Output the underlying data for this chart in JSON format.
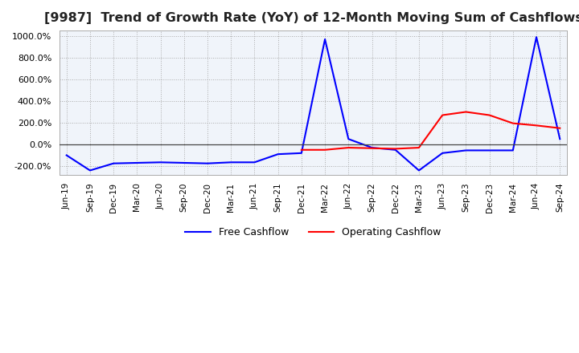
{
  "title": "[9987]  Trend of Growth Rate (YoY) of 12-Month Moving Sum of Cashflows",
  "title_fontsize": 11.5,
  "background_color": "#ffffff",
  "plot_bg_color": "#f0f4fa",
  "grid_color": "#aaaaaa",
  "x_labels": [
    "Jun-19",
    "Sep-19",
    "Dec-19",
    "Mar-20",
    "Jun-20",
    "Sep-20",
    "Dec-20",
    "Mar-21",
    "Jun-21",
    "Sep-21",
    "Dec-21",
    "Mar-22",
    "Jun-22",
    "Sep-22",
    "Dec-22",
    "Mar-23",
    "Jun-23",
    "Sep-23",
    "Dec-23",
    "Mar-24",
    "Jun-24",
    "Sep-24"
  ],
  "operating_cashflow": [
    null,
    null,
    null,
    null,
    null,
    null,
    null,
    null,
    null,
    null,
    -50,
    -50,
    -30,
    -35,
    -40,
    -30,
    270,
    300,
    270,
    195,
    175,
    150
  ],
  "free_cashflow": [
    -100,
    -240,
    -175,
    -170,
    -165,
    -170,
    -175,
    -165,
    -165,
    -90,
    -80,
    970,
    50,
    -30,
    -50,
    -240,
    -80,
    -55,
    -55,
    -55,
    990,
    50
  ],
  "ylim": [
    -280,
    1050
  ],
  "yticks": [
    -200,
    0,
    200,
    400,
    600,
    800,
    1000
  ],
  "operating_color": "#ff0000",
  "free_color": "#0000ff",
  "legend_labels": [
    "Operating Cashflow",
    "Free Cashflow"
  ]
}
